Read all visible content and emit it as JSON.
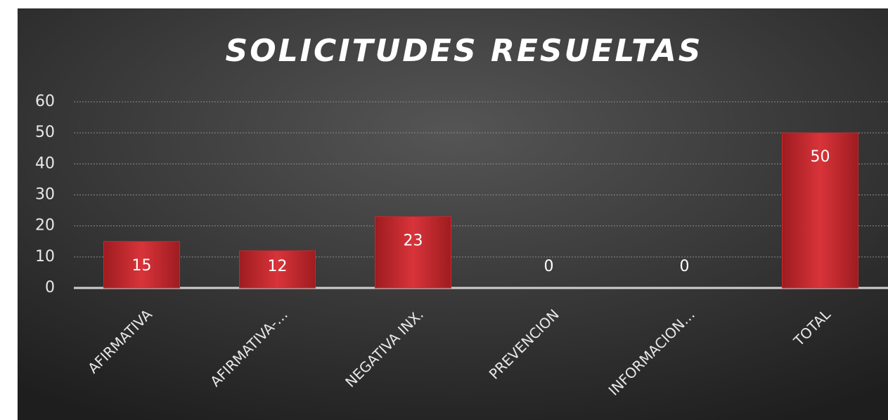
{
  "chart_data": {
    "type": "bar",
    "title": "SOLICITUDES RESUELTAS",
    "categories": [
      "AFIRMATIVA",
      "AFIRMATIVA-…",
      "NEGATIVA INX.",
      "PREVENCION",
      "INFORMACION…",
      "TOTAL"
    ],
    "values": [
      15,
      12,
      23,
      0,
      0,
      50
    ],
    "color": "#c8282e",
    "ylim": [
      0,
      60
    ],
    "yticks": [
      0,
      10,
      20,
      30,
      40,
      50,
      60
    ],
    "grid": true
  }
}
